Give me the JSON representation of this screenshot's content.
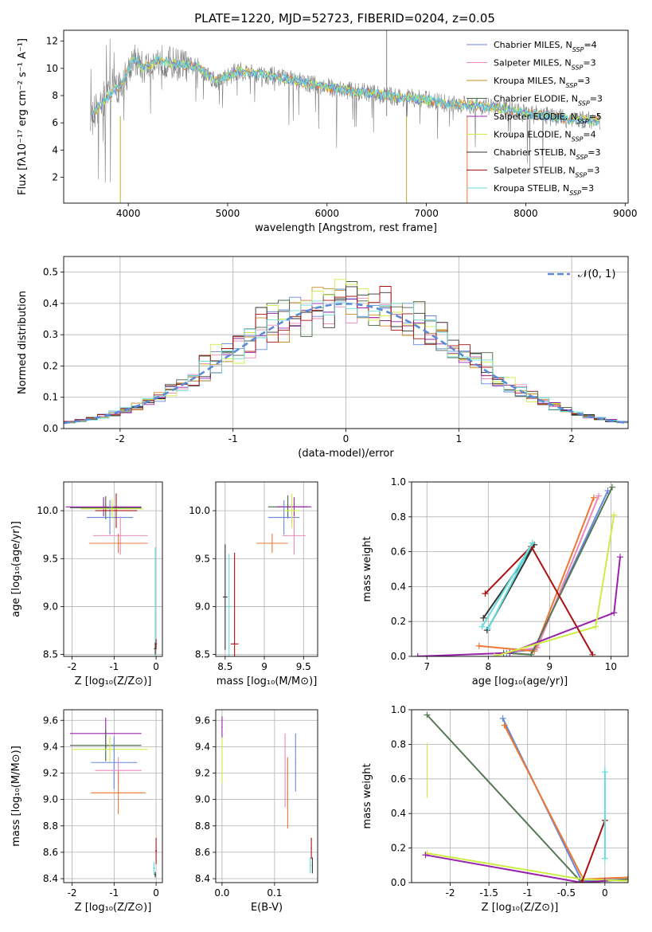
{
  "figure": {
    "title": "PLATE=1220, MJD=52723, FIBERID=0204, z=0.05",
    "series_colors": [
      "#6688dd",
      "#ee88bb",
      "#cc8822",
      "#446644",
      "#9922aa",
      "#ccee44",
      "#333333",
      "#aa1111",
      "#66dddd",
      "#ee7733",
      "#557755"
    ]
  },
  "chart_data": [
    {
      "id": "spectrum",
      "type": "line",
      "title": "PLATE=1220, MJD=52723, FIBERID=0204, z=0.05",
      "xlabel": "wavelength [Angstrom, rest frame]",
      "ylabel": "Flux [fλ10⁻¹⁷ erg cm⁻² s⁻¹ A⁻¹]",
      "xlim": [
        3350,
        9030
      ],
      "ylim": [
        0.1,
        12.8
      ],
      "xticks": [
        4000,
        5000,
        6000,
        7000,
        8000,
        9000
      ],
      "yticks": [
        2,
        4,
        6,
        8,
        10,
        12
      ],
      "legend_position": "top-right",
      "grid": false,
      "legend": [
        "Chabrier MILES, N_SSP=4",
        "Salpeter MILES, N_SSP=3",
        "Kroupa MILES, N_SSP=3",
        "Chabrier ELODIE, N_SSP=3",
        "Salpeter ELODIE, N_SSP=5",
        "Kroupa ELODIE, N_SSP=4",
        "Chabrier STELIB, N_SSP=3",
        "Salpeter STELIB, N_SSP=3",
        "Kroupa STELIB, N_SSP=3"
      ],
      "continuum": {
        "x": [
          3620,
          3800,
          3950,
          4050,
          4150,
          4300,
          4500,
          4700,
          4900,
          5100,
          5300,
          5500,
          5800,
          6100,
          6400,
          6700,
          7000,
          7200,
          7400,
          7600,
          7800,
          8000,
          8200,
          8400,
          8600,
          8750
        ],
        "y": [
          6.4,
          8.0,
          9.0,
          10.8,
          10.0,
          10.6,
          10.3,
          10.1,
          9.0,
          9.8,
          9.6,
          9.4,
          8.9,
          8.5,
          8.2,
          7.9,
          7.7,
          7.4,
          7.3,
          7.2,
          7.0,
          6.7,
          6.5,
          6.3,
          6.2,
          6.1
        ]
      }
    },
    {
      "id": "residuals",
      "type": "histogram",
      "xlabel": "(data-model)/error",
      "ylabel": "Normed distribution",
      "xlim": [
        -2.5,
        2.5
      ],
      "ylim": [
        0,
        0.55
      ],
      "xticks": [
        -2,
        -1,
        0,
        1,
        2
      ],
      "yticks": [
        0.0,
        0.1,
        0.2,
        0.3,
        0.4,
        0.5
      ],
      "grid": true,
      "legend": [
        "𝒩(0, 1)"
      ],
      "legend_position": "top-right",
      "bin_width": 0.1
    },
    {
      "id": "age_vs_Z",
      "type": "errorbar",
      "xlabel": "Z [log₁₀(Z/Z⊙)]",
      "ylabel": "age  [log₁₀(age/yr)]",
      "xlim": [
        -2.2,
        0.15
      ],
      "ylim": [
        8.48,
        10.3
      ],
      "xticks": [
        -2,
        -1,
        0
      ],
      "yticks": [
        8.5,
        9.0,
        9.5,
        10.0
      ],
      "grid": true,
      "points": [
        {
          "x": -1.2,
          "xerr": 0.85,
          "y": 10.03,
          "yerr": 0.1
        },
        {
          "x": -1.25,
          "xerr": 0.9,
          "y": 10.04,
          "yerr": 0.12
        },
        {
          "x": -1.1,
          "xerr": 0.55,
          "y": 9.93,
          "yerr": 0.2
        },
        {
          "x": -0.85,
          "xerr": 0.65,
          "y": 9.74,
          "yerr": 0.2
        },
        {
          "x": -0.9,
          "xerr": 0.7,
          "y": 9.66,
          "yerr": 0.1
        },
        {
          "x": -0.02,
          "xerr": 0.02,
          "y": 8.6,
          "yerr": 1.0
        }
      ]
    },
    {
      "id": "age_vs_mass",
      "type": "errorbar",
      "xlabel": "mass [log₁₀(M/M⊙)]",
      "ylabel": "",
      "xlim": [
        8.38,
        9.68
      ],
      "ylim": [
        8.48,
        10.3
      ],
      "xticks": [
        8.5,
        9.0,
        9.5
      ],
      "yticks": [
        8.5,
        9.0,
        9.5,
        10.0
      ],
      "grid": true
    },
    {
      "id": "weight_vs_age",
      "type": "line",
      "xlabel": "age  [log₁₀(age/yr)]",
      "ylabel": "mass weight",
      "xlim": [
        6.75,
        10.28
      ],
      "ylim": [
        0,
        1.0
      ],
      "xticks": [
        7,
        8,
        9,
        10
      ],
      "yticks": [
        0.0,
        0.2,
        0.4,
        0.6,
        0.8,
        1.0
      ],
      "grid": true,
      "series": [
        {
          "color": "#6688dd",
          "x": [
            8.3,
            8.75,
            9.95
          ],
          "y": [
            0.02,
            0.04,
            0.95
          ]
        },
        {
          "color": "#ee88bb",
          "x": [
            8.45,
            8.8,
            9.8
          ],
          "y": [
            0.03,
            0.05,
            0.92
          ]
        },
        {
          "color": "#ee7733",
          "x": [
            7.85,
            8.75,
            9.72
          ],
          "y": [
            0.06,
            0.03,
            0.91
          ]
        },
        {
          "color": "#557755",
          "x": [
            8.25,
            8.7,
            10.02
          ],
          "y": [
            0.02,
            0.01,
            0.97
          ]
        },
        {
          "color": "#9922aa",
          "x": [
            6.85,
            8.35,
            10.05,
            10.15
          ],
          "y": [
            0.0,
            0.02,
            0.25,
            0.57
          ]
        },
        {
          "color": "#ccee44",
          "x": [
            8.1,
            9.75,
            10.05
          ],
          "y": [
            0.0,
            0.17,
            0.81
          ]
        },
        {
          "color": "#333333",
          "x": [
            7.92,
            8.75,
            7.98
          ],
          "y": [
            0.22,
            0.64,
            0.15
          ]
        },
        {
          "color": "#aa1111",
          "x": [
            7.95,
            8.7,
            9.7
          ],
          "y": [
            0.36,
            0.63,
            0.01
          ]
        },
        {
          "color": "#66dddd",
          "x": [
            7.9,
            8.72,
            8.0
          ],
          "y": [
            0.17,
            0.65,
            0.16
          ]
        }
      ]
    },
    {
      "id": "mass_vs_Z",
      "type": "errorbar",
      "xlabel": "Z [log₁₀(Z/Z⊙)]",
      "ylabel": "mass [log₁₀(M/M⊙)]",
      "xlim": [
        -2.2,
        0.15
      ],
      "ylim": [
        8.37,
        9.68
      ],
      "xticks": [
        -2,
        -1,
        0
      ],
      "yticks": [
        8.4,
        8.6,
        8.8,
        9.0,
        9.2,
        9.4,
        9.6
      ],
      "grid": true
    },
    {
      "id": "mass_vs_ebv",
      "type": "errorbar",
      "xlabel": "E(B-V)",
      "ylabel": "",
      "xlim": [
        -0.012,
        0.182
      ],
      "ylim": [
        8.37,
        9.68
      ],
      "xticks": [
        0.0,
        0.1
      ],
      "yticks": [
        8.4,
        8.6,
        8.8,
        9.0,
        9.2,
        9.4,
        9.6
      ],
      "grid": true
    },
    {
      "id": "weight_vs_Z",
      "type": "line",
      "xlabel": "Z [log₁₀(Z/Z⊙)]",
      "ylabel": "mass weight",
      "xlim": [
        -2.5,
        0.3
      ],
      "ylim": [
        0,
        1.0
      ],
      "xticks": [
        -2.0,
        -1.5,
        -1.0,
        -0.5,
        0.0
      ],
      "yticks": [
        0.0,
        0.2,
        0.4,
        0.6,
        0.8,
        1.0
      ],
      "grid": true,
      "series": [
        {
          "color": "#6688dd",
          "x": [
            -1.32,
            -0.3,
            0.3
          ],
          "y": [
            0.95,
            0.01,
            0.02
          ]
        },
        {
          "color": "#ee7733",
          "x": [
            -1.3,
            -0.28,
            0.3
          ],
          "y": [
            0.91,
            0.02,
            0.03
          ]
        },
        {
          "color": "#557755",
          "x": [
            -2.3,
            -0.3,
            0.3
          ],
          "y": [
            0.97,
            0.0,
            0.02
          ]
        },
        {
          "color": "#ccee44",
          "x": [
            -2.3,
            -0.3,
            0.3
          ],
          "y": [
            0.17,
            0.02,
            0.01
          ]
        },
        {
          "color": "#9922aa",
          "x": [
            -2.32,
            -0.3,
            0.0
          ],
          "y": [
            0.16,
            0.0,
            0.01
          ]
        },
        {
          "color": "#aa1111",
          "x": [
            -0.3,
            0.0
          ],
          "y": [
            0.0,
            0.36
          ]
        },
        {
          "color": "#66dddd",
          "x": [
            0.0,
            0.0
          ],
          "y": [
            0.14,
            0.64
          ]
        }
      ]
    }
  ]
}
